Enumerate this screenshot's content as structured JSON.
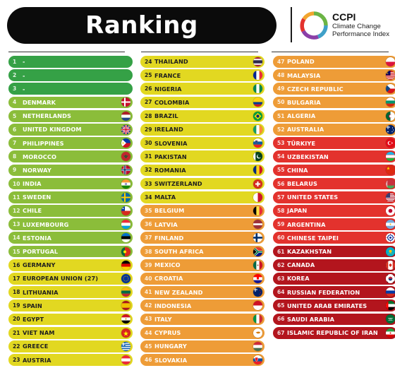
{
  "title": "Ranking",
  "logo": {
    "abbr": "CCPI",
    "line1": "Climate Change",
    "line2": "Performance Index"
  },
  "colors": {
    "green-dark": "#35a146",
    "green-light": "#8bbd3a",
    "yellow": "#e2d821",
    "orange": "#ee9c37",
    "red-light": "#e3322d",
    "red-dark": "#b3151d"
  },
  "columns": [
    [
      {
        "rank": "1",
        "name": "-",
        "cls": "green-dark",
        "flag": null
      },
      {
        "rank": "2",
        "name": "-",
        "cls": "green-dark",
        "flag": null
      },
      {
        "rank": "3",
        "name": "-",
        "cls": "green-dark",
        "flag": null
      },
      {
        "rank": "4",
        "name": "DENMARK",
        "cls": "green-light",
        "flag": "denmark"
      },
      {
        "rank": "5",
        "name": "NETHERLANDS",
        "cls": "green-light",
        "flag": "netherlands"
      },
      {
        "rank": "6",
        "name": "UNITED KINGDOM",
        "cls": "green-light",
        "flag": "uk"
      },
      {
        "rank": "7",
        "name": "PHILIPPINES",
        "cls": "green-light",
        "flag": "philippines"
      },
      {
        "rank": "8",
        "name": "MOROCCO",
        "cls": "green-light",
        "flag": "morocco"
      },
      {
        "rank": "9",
        "name": "NORWAY",
        "cls": "green-light",
        "flag": "norway"
      },
      {
        "rank": "10",
        "name": "INDIA",
        "cls": "green-light",
        "flag": "india"
      },
      {
        "rank": "11",
        "name": "SWEDEN",
        "cls": "green-light",
        "flag": "sweden"
      },
      {
        "rank": "12",
        "name": "CHILE",
        "cls": "green-light",
        "flag": "chile"
      },
      {
        "rank": "13",
        "name": "LUXEMBOURG",
        "cls": "green-light",
        "flag": "luxembourg"
      },
      {
        "rank": "14",
        "name": "ESTONIA",
        "cls": "green-light",
        "flag": "estonia"
      },
      {
        "rank": "15",
        "name": "PORTUGAL",
        "cls": "green-light",
        "flag": "portugal"
      },
      {
        "rank": "16",
        "name": "GERMANY",
        "cls": "yellow",
        "flag": "germany"
      },
      {
        "rank": "17",
        "name": "EUROPEAN UNION (27)",
        "cls": "yellow",
        "flag": "eu"
      },
      {
        "rank": "18",
        "name": "LITHUANIA",
        "cls": "yellow",
        "flag": "lithuania"
      },
      {
        "rank": "19",
        "name": "SPAIN",
        "cls": "yellow",
        "flag": "spain"
      },
      {
        "rank": "20",
        "name": "EGYPT",
        "cls": "yellow",
        "flag": "egypt"
      },
      {
        "rank": "21",
        "name": "VIET NAM",
        "cls": "yellow",
        "flag": "vietnam"
      },
      {
        "rank": "22",
        "name": "GREECE",
        "cls": "yellow",
        "flag": "greece"
      },
      {
        "rank": "23",
        "name": "AUSTRIA",
        "cls": "yellow",
        "flag": "austria"
      }
    ],
    [
      {
        "rank": "24",
        "name": "THAILAND",
        "cls": "yellow",
        "flag": "thailand"
      },
      {
        "rank": "25",
        "name": "FRANCE",
        "cls": "yellow",
        "flag": "france"
      },
      {
        "rank": "26",
        "name": "NIGERIA",
        "cls": "yellow",
        "flag": "nigeria"
      },
      {
        "rank": "27",
        "name": "COLOMBIA",
        "cls": "yellow",
        "flag": "colombia"
      },
      {
        "rank": "28",
        "name": "BRAZIL",
        "cls": "yellow",
        "flag": "brazil"
      },
      {
        "rank": "29",
        "name": "IRELAND",
        "cls": "yellow",
        "flag": "ireland"
      },
      {
        "rank": "30",
        "name": "SLOVENIA",
        "cls": "yellow",
        "flag": "slovenia"
      },
      {
        "rank": "31",
        "name": "PAKISTAN",
        "cls": "yellow",
        "flag": "pakistan"
      },
      {
        "rank": "32",
        "name": "ROMANIA",
        "cls": "yellow",
        "flag": "romania"
      },
      {
        "rank": "33",
        "name": "SWITZERLAND",
        "cls": "yellow",
        "flag": "switzerland"
      },
      {
        "rank": "34",
        "name": "MALTA",
        "cls": "yellow",
        "flag": "malta"
      },
      {
        "rank": "35",
        "name": "BELGIUM",
        "cls": "orange",
        "flag": "belgium"
      },
      {
        "rank": "36",
        "name": "LATVIA",
        "cls": "orange",
        "flag": "latvia"
      },
      {
        "rank": "37",
        "name": "FINLAND",
        "cls": "orange",
        "flag": "finland"
      },
      {
        "rank": "38",
        "name": "SOUTH AFRICA",
        "cls": "orange",
        "flag": "southafrica"
      },
      {
        "rank": "39",
        "name": "MEXICO",
        "cls": "orange",
        "flag": "mexico"
      },
      {
        "rank": "40",
        "name": "CROATIA",
        "cls": "orange",
        "flag": "croatia"
      },
      {
        "rank": "41",
        "name": "NEW ZEALAND",
        "cls": "orange",
        "flag": "newzealand"
      },
      {
        "rank": "42",
        "name": "INDONESIA",
        "cls": "orange",
        "flag": "indonesia"
      },
      {
        "rank": "43",
        "name": "ITALY",
        "cls": "orange",
        "flag": "italy"
      },
      {
        "rank": "44",
        "name": "CYPRUS",
        "cls": "orange",
        "flag": "cyprus"
      },
      {
        "rank": "45",
        "name": "HUNGARY",
        "cls": "orange",
        "flag": "hungary"
      },
      {
        "rank": "46",
        "name": "SLOVAKIA",
        "cls": "orange",
        "flag": "slovakia"
      }
    ],
    [
      {
        "rank": "47",
        "name": "POLAND",
        "cls": "orange",
        "flag": "poland"
      },
      {
        "rank": "48",
        "name": "MALAYSIA",
        "cls": "orange",
        "flag": "malaysia"
      },
      {
        "rank": "49",
        "name": "CZECH REPUBLIC",
        "cls": "orange",
        "flag": "czech"
      },
      {
        "rank": "50",
        "name": "BULGARIA",
        "cls": "orange",
        "flag": "bulgaria"
      },
      {
        "rank": "51",
        "name": "ALGERIA",
        "cls": "orange",
        "flag": "algeria"
      },
      {
        "rank": "52",
        "name": "AUSTRALIA",
        "cls": "orange",
        "flag": "australia"
      },
      {
        "rank": "53",
        "name": "TÜRKIYE",
        "cls": "red-light",
        "flag": "turkey"
      },
      {
        "rank": "54",
        "name": "UZBEKISTAN",
        "cls": "red-light",
        "flag": "uzbekistan"
      },
      {
        "rank": "55",
        "name": "CHINA",
        "cls": "red-light",
        "flag": "china"
      },
      {
        "rank": "56",
        "name": "BELARUS",
        "cls": "red-light",
        "flag": "belarus"
      },
      {
        "rank": "57",
        "name": "UNITED STATES",
        "cls": "red-light",
        "flag": "usa"
      },
      {
        "rank": "58",
        "name": "JAPAN",
        "cls": "red-light",
        "flag": "japan"
      },
      {
        "rank": "59",
        "name": "ARGENTINA",
        "cls": "red-light",
        "flag": "argentina"
      },
      {
        "rank": "60",
        "name": "CHINESE TAIPEI",
        "cls": "red-light",
        "flag": "taipei"
      },
      {
        "rank": "61",
        "name": "KAZAKHSTAN",
        "cls": "red-dark",
        "flag": "kazakhstan"
      },
      {
        "rank": "62",
        "name": "CANADA",
        "cls": "red-dark",
        "flag": "canada"
      },
      {
        "rank": "63",
        "name": "KOREA",
        "cls": "red-dark",
        "flag": "korea"
      },
      {
        "rank": "64",
        "name": "RUSSIAN FEDERATION",
        "cls": "red-dark",
        "flag": "russia"
      },
      {
        "rank": "65",
        "name": "UNITED ARAB EMIRATES",
        "cls": "red-dark",
        "flag": "uae"
      },
      {
        "rank": "66",
        "name": "SAUDI ARABIA",
        "cls": "red-dark",
        "flag": "saudi"
      },
      {
        "rank": "67",
        "name": "ISLAMIC REPUBLIC OF IRAN",
        "cls": "red-dark",
        "flag": "iran"
      }
    ]
  ]
}
